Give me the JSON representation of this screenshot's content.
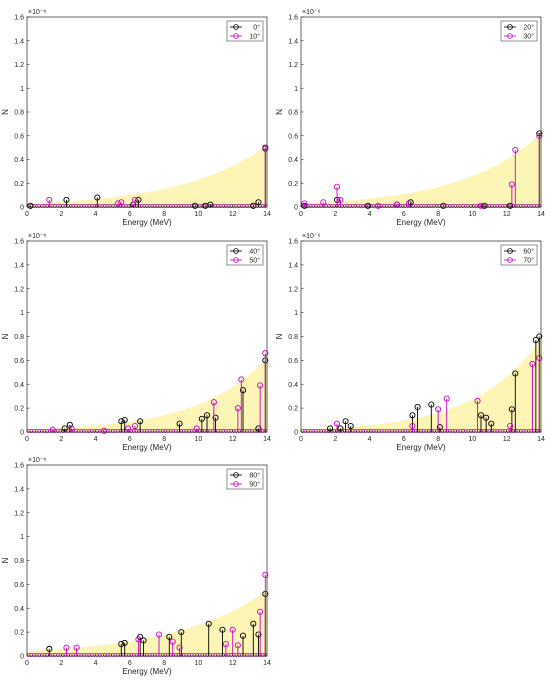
{
  "chart_data": [
    {
      "type": "stem",
      "xlabel": "Energy (MeV)",
      "ylabel": "N",
      "exponent": "×10⁻⁶",
      "xlim": [
        0,
        14
      ],
      "ylim": [
        0,
        1.6
      ],
      "xticks": [
        "0",
        "2",
        "4",
        "6",
        "8",
        "10",
        "12",
        "14"
      ],
      "yticks": [
        "0",
        "0.2",
        "0.4",
        "0.6",
        "0.8",
        "1",
        "1.2",
        "1.4",
        "1.6"
      ],
      "envelope": {
        "color": "#fdf5b5",
        "y_at_0": 0.03,
        "y_at_14": 0.52
      },
      "legend_position": "top-right",
      "series": [
        {
          "name": "0°",
          "color": "#000000",
          "x": [
            0.2,
            2.3,
            4.1,
            6.2,
            6.5,
            9.8,
            10.4,
            10.7,
            13.2,
            13.5,
            13.9
          ],
          "y": [
            0.01,
            0.06,
            0.08,
            0.02,
            0.06,
            0.01,
            0.01,
            0.02,
            0.01,
            0.04,
            0.5
          ]
        },
        {
          "name": "10°",
          "color": "#cc00cc",
          "x": [
            1.3,
            5.3,
            5.5,
            6.3,
            13.9
          ],
          "y": [
            0.06,
            0.03,
            0.04,
            0.06,
            0.49
          ]
        }
      ]
    },
    {
      "type": "stem",
      "xlabel": "Energy (MeV)",
      "ylabel": "N",
      "exponent": "×10⁻⁶",
      "xlim": [
        0,
        14
      ],
      "ylim": [
        0,
        1.6
      ],
      "xticks": [
        "0",
        "2",
        "4",
        "6",
        "8",
        "10",
        "12",
        "14"
      ],
      "yticks": [
        "0",
        "0.2",
        "0.4",
        "0.6",
        "0.8",
        "1",
        "1.2",
        "1.4",
        "1.6"
      ],
      "envelope": {
        "color": "#fdf5b5",
        "y_at_0": 0.03,
        "y_at_14": 0.62
      },
      "legend_position": "top-right",
      "series": [
        {
          "name": "20°",
          "color": "#000000",
          "x": [
            0.2,
            2.1,
            3.9,
            5.6,
            6.4,
            8.3,
            10.7,
            12.2,
            13.9
          ],
          "y": [
            0.01,
            0.06,
            0.01,
            0.02,
            0.04,
            0.01,
            0.01,
            0.01,
            0.62
          ]
        },
        {
          "name": "30°",
          "color": "#cc00cc",
          "x": [
            0.2,
            1.3,
            2.1,
            2.3,
            4.5,
            5.6,
            6.3,
            10.5,
            12.3,
            12.5,
            13.9
          ],
          "y": [
            0.03,
            0.04,
            0.17,
            0.06,
            0.01,
            0.02,
            0.03,
            0.01,
            0.19,
            0.48,
            0.6
          ]
        }
      ]
    },
    {
      "type": "stem",
      "xlabel": "Energy (MeV)",
      "ylabel": "N",
      "exponent": "×10⁻⁶",
      "xlim": [
        0,
        14
      ],
      "ylim": [
        0,
        1.6
      ],
      "xticks": [
        "0",
        "2",
        "4",
        "6",
        "8",
        "10",
        "12",
        "14"
      ],
      "yticks": [
        "0",
        "0.2",
        "0.4",
        "0.6",
        "0.8",
        "1",
        "1.2",
        "1.4",
        "1.6"
      ],
      "envelope": {
        "color": "#fdf5b5",
        "y_at_0": 0.02,
        "y_at_14": 0.62
      },
      "legend_position": "top-right",
      "series": [
        {
          "name": "40°",
          "color": "#000000",
          "x": [
            2.2,
            2.5,
            5.5,
            5.7,
            6.6,
            8.9,
            10.2,
            10.5,
            11.0,
            12.6,
            13.5,
            13.9
          ],
          "y": [
            0.03,
            0.06,
            0.09,
            0.1,
            0.09,
            0.07,
            0.11,
            0.14,
            0.12,
            0.35,
            0.03,
            0.6
          ]
        },
        {
          "name": "50°",
          "color": "#cc00cc",
          "x": [
            1.5,
            2.6,
            4.5,
            5.9,
            6.3,
            9.9,
            10.9,
            12.3,
            12.5,
            13.6,
            13.9
          ],
          "y": [
            0.02,
            0.03,
            0.01,
            0.03,
            0.05,
            0.03,
            0.25,
            0.2,
            0.44,
            0.39,
            0.66
          ]
        }
      ]
    },
    {
      "type": "stem",
      "xlabel": "Energy (MeV)",
      "ylabel": "N",
      "exponent": "×10⁻⁶",
      "xlim": [
        0,
        14
      ],
      "ylim": [
        0,
        1.6
      ],
      "xticks": [
        "0",
        "2",
        "4",
        "6",
        "8",
        "10",
        "12",
        "14"
      ],
      "yticks": [
        "0",
        "0.2",
        "0.4",
        "0.6",
        "0.8",
        "1",
        "1.2",
        "1.4",
        "1.6"
      ],
      "envelope": {
        "color": "#fdf5b5",
        "y_at_0": 0.02,
        "y_at_14": 0.78
      },
      "legend_position": "top-right",
      "series": [
        {
          "name": "60°",
          "color": "#000000",
          "x": [
            1.7,
            2.3,
            2.6,
            2.9,
            6.5,
            6.8,
            7.6,
            8.1,
            10.5,
            10.8,
            11.1,
            12.3,
            12.5,
            13.7,
            13.9
          ],
          "y": [
            0.03,
            0.03,
            0.09,
            0.05,
            0.14,
            0.21,
            0.23,
            0.04,
            0.14,
            0.12,
            0.07,
            0.19,
            0.49,
            0.77,
            0.8
          ]
        },
        {
          "name": "70°",
          "color": "#cc00cc",
          "x": [
            2.1,
            6.5,
            8.0,
            8.5,
            10.3,
            12.2,
            13.5,
            13.9
          ],
          "y": [
            0.07,
            0.05,
            0.19,
            0.28,
            0.26,
            0.05,
            0.57,
            0.62
          ]
        }
      ]
    },
    {
      "type": "stem",
      "xlabel": "Energy (MeV)",
      "ylabel": "N",
      "exponent": "×10⁻⁶",
      "xlim": [
        0,
        14
      ],
      "ylim": [
        0,
        1.6
      ],
      "xticks": [
        "0",
        "2",
        "4",
        "6",
        "8",
        "10",
        "12",
        "14"
      ],
      "yticks": [
        "0",
        "0.2",
        "0.4",
        "0.6",
        "0.8",
        "1",
        "1.2",
        "1.4",
        "1.6"
      ],
      "envelope": {
        "color": "#fdf5b5",
        "y_at_0": 0.04,
        "y_at_14": 0.55
      },
      "legend_position": "top-right",
      "series": [
        {
          "name": "80°",
          "color": "#000000",
          "x": [
            1.3,
            5.5,
            5.7,
            6.6,
            6.8,
            8.3,
            9.0,
            10.6,
            11.4,
            12.6,
            13.2,
            13.5,
            13.9
          ],
          "y": [
            0.06,
            0.1,
            0.11,
            0.16,
            0.13,
            0.16,
            0.2,
            0.27,
            0.22,
            0.17,
            0.27,
            0.18,
            0.52
          ]
        },
        {
          "name": "90°",
          "color": "#cc00cc",
          "x": [
            2.3,
            2.9,
            6.5,
            7.7,
            8.5,
            8.9,
            11.6,
            12.0,
            12.3,
            13.6,
            13.9
          ],
          "y": [
            0.07,
            0.07,
            0.14,
            0.18,
            0.12,
            0.07,
            0.1,
            0.22,
            0.09,
            0.37,
            0.68
          ]
        }
      ]
    }
  ]
}
